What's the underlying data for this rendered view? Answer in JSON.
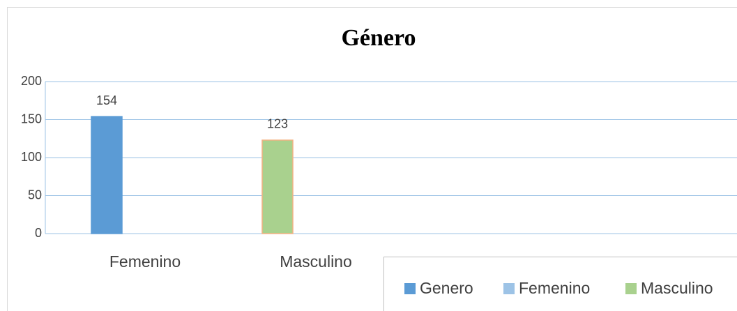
{
  "chart_data": {
    "type": "bar",
    "title": "Género",
    "categories": [
      "Femenino",
      "Masculino"
    ],
    "series": [
      {
        "name": "Genero",
        "values": [
          154,
          123
        ],
        "colors": [
          "#5b9bd5",
          "#a9d18e"
        ],
        "edge_colors": [
          "#5b9bd5",
          "#f4b183"
        ]
      }
    ],
    "ylim": [
      0,
      200
    ],
    "yticks": [
      0,
      50,
      100,
      150,
      200
    ],
    "grid": true,
    "legend": {
      "position": "bottom-right",
      "entries": [
        {
          "name": "Genero",
          "color": "#5b9bd5"
        },
        {
          "name": "Femenino",
          "color": "#9dc3e6"
        },
        {
          "name": "Masculino",
          "color": "#a9d18e"
        }
      ]
    }
  }
}
